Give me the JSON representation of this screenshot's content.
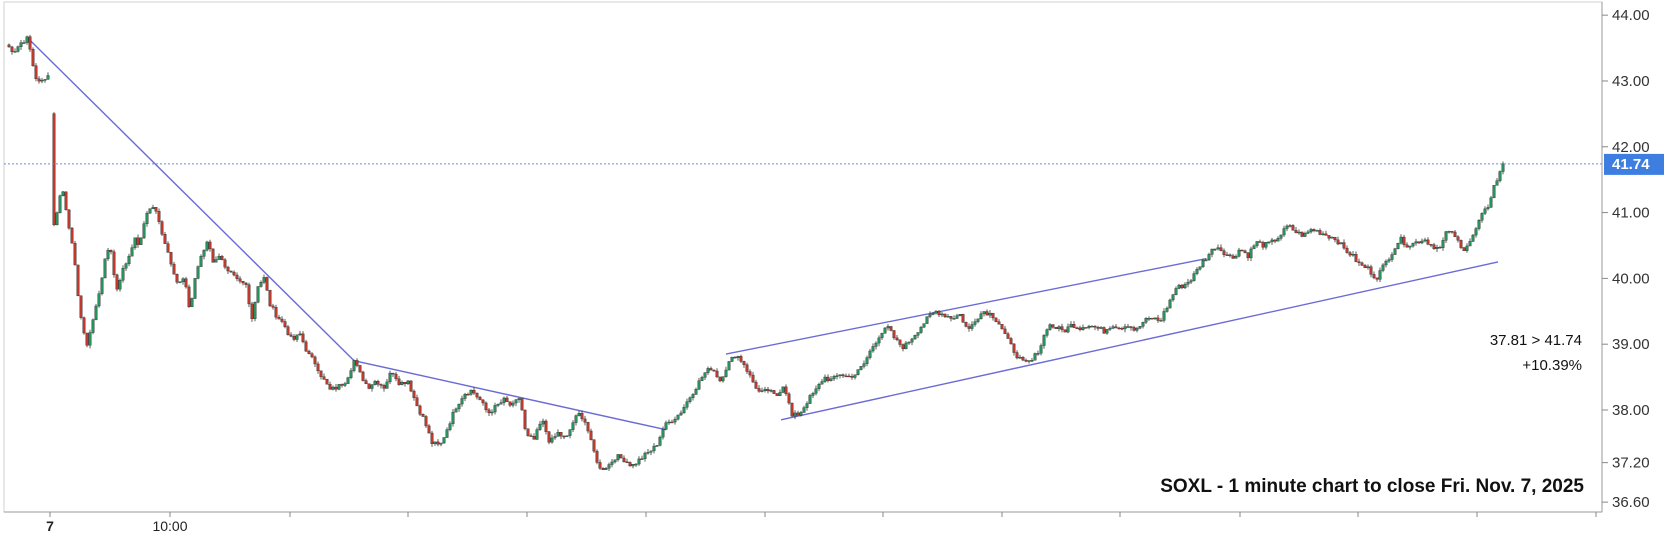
{
  "chart_data": {
    "type": "line",
    "title": "SOXL - 1 minute chart to close Fri. Nov. 7, 2025",
    "x_tick_labels": [
      "7",
      "10:00"
    ],
    "y_tick_labels": [
      "44.00",
      "43.00",
      "42.00",
      "41.00",
      "40.00",
      "39.00",
      "38.00",
      "37.20",
      "36.60"
    ],
    "y_tick_values": [
      44.0,
      43.0,
      42.0,
      41.0,
      40.0,
      39.0,
      38.0,
      37.2,
      36.6
    ],
    "ylim": [
      36.45,
      44.2
    ],
    "last_price": 41.74,
    "last_price_label": "41.74",
    "annotation_line1": "37.81 > 41.74",
    "annotation_line2": "+10.39%",
    "colors": {
      "up": "#26935c",
      "down": "#c0392b",
      "trendline": "#6b6bd6",
      "price_line": "#6a8fd6",
      "price_tag": "#3d7ee0"
    },
    "series": [
      {
        "values": [
          [
            0,
            43.55
          ],
          [
            8,
            43.45
          ],
          [
            16,
            43.6
          ],
          [
            22,
            43.65
          ],
          [
            26,
            43.3
          ],
          [
            30,
            43.05
          ],
          [
            34,
            42.95
          ],
          [
            38,
            43.05
          ],
          [
            44,
            43.1
          ],
          [
            48,
            40.8
          ],
          [
            52,
            41.1
          ],
          [
            56,
            41.4
          ],
          [
            62,
            40.9
          ],
          [
            68,
            40.3
          ],
          [
            74,
            39.5
          ],
          [
            80,
            38.95
          ],
          [
            86,
            39.3
          ],
          [
            92,
            39.7
          ],
          [
            98,
            40.2
          ],
          [
            104,
            40.55
          ],
          [
            110,
            39.8
          ],
          [
            116,
            40.1
          ],
          [
            122,
            40.3
          ],
          [
            128,
            40.6
          ],
          [
            134,
            40.5
          ],
          [
            140,
            41.0
          ],
          [
            148,
            41.1
          ],
          [
            154,
            40.8
          ],
          [
            160,
            40.5
          ],
          [
            166,
            40.2
          ],
          [
            172,
            39.9
          ],
          [
            178,
            40.0
          ],
          [
            184,
            39.5
          ],
          [
            190,
            40.1
          ],
          [
            196,
            40.35
          ],
          [
            202,
            40.6
          ],
          [
            208,
            40.2
          ],
          [
            214,
            40.4
          ],
          [
            220,
            40.1
          ],
          [
            226,
            40.05
          ],
          [
            232,
            39.95
          ],
          [
            240,
            39.9
          ],
          [
            246,
            39.4
          ],
          [
            252,
            39.9
          ],
          [
            258,
            40.0
          ],
          [
            264,
            39.6
          ],
          [
            270,
            39.45
          ],
          [
            278,
            39.3
          ],
          [
            286,
            39.05
          ],
          [
            294,
            39.15
          ],
          [
            302,
            38.85
          ],
          [
            310,
            38.7
          ],
          [
            316,
            38.5
          ],
          [
            324,
            38.3
          ],
          [
            332,
            38.35
          ],
          [
            340,
            38.45
          ],
          [
            348,
            38.75
          ],
          [
            354,
            38.55
          ],
          [
            362,
            38.35
          ],
          [
            370,
            38.45
          ],
          [
            378,
            38.35
          ],
          [
            386,
            38.6
          ],
          [
            394,
            38.4
          ],
          [
            402,
            38.45
          ],
          [
            410,
            38.1
          ],
          [
            418,
            37.85
          ],
          [
            426,
            37.5
          ],
          [
            434,
            37.45
          ],
          [
            442,
            37.75
          ],
          [
            450,
            38.05
          ],
          [
            458,
            38.25
          ],
          [
            466,
            38.3
          ],
          [
            474,
            38.15
          ],
          [
            482,
            37.95
          ],
          [
            490,
            38.05
          ],
          [
            498,
            38.15
          ],
          [
            506,
            38.05
          ],
          [
            514,
            38.2
          ],
          [
            520,
            37.6
          ],
          [
            528,
            37.55
          ],
          [
            536,
            37.85
          ],
          [
            544,
            37.5
          ],
          [
            552,
            37.65
          ],
          [
            560,
            37.55
          ],
          [
            568,
            37.85
          ],
          [
            574,
            37.95
          ],
          [
            580,
            37.8
          ],
          [
            586,
            37.45
          ],
          [
            594,
            37.1
          ],
          [
            602,
            37.15
          ],
          [
            610,
            37.3
          ],
          [
            618,
            37.25
          ],
          [
            626,
            37.15
          ],
          [
            634,
            37.25
          ],
          [
            642,
            37.35
          ],
          [
            650,
            37.45
          ],
          [
            658,
            37.75
          ],
          [
            666,
            37.85
          ],
          [
            674,
            37.95
          ],
          [
            682,
            38.15
          ],
          [
            690,
            38.35
          ],
          [
            698,
            38.55
          ],
          [
            706,
            38.65
          ],
          [
            714,
            38.45
          ],
          [
            722,
            38.7
          ],
          [
            730,
            38.85
          ],
          [
            738,
            38.7
          ],
          [
            746,
            38.45
          ],
          [
            754,
            38.25
          ],
          [
            762,
            38.3
          ],
          [
            770,
            38.2
          ],
          [
            778,
            38.4
          ],
          [
            786,
            37.9
          ],
          [
            794,
            37.95
          ],
          [
            802,
            38.15
          ],
          [
            810,
            38.3
          ],
          [
            818,
            38.5
          ],
          [
            826,
            38.45
          ],
          [
            834,
            38.55
          ],
          [
            842,
            38.5
          ],
          [
            850,
            38.55
          ],
          [
            858,
            38.7
          ],
          [
            866,
            38.95
          ],
          [
            874,
            39.15
          ],
          [
            882,
            39.25
          ],
          [
            890,
            39.05
          ],
          [
            898,
            38.95
          ],
          [
            906,
            39.1
          ],
          [
            914,
            39.25
          ],
          [
            922,
            39.4
          ],
          [
            930,
            39.5
          ],
          [
            938,
            39.45
          ],
          [
            946,
            39.4
          ],
          [
            954,
            39.45
          ],
          [
            962,
            39.2
          ],
          [
            970,
            39.4
          ],
          [
            978,
            39.5
          ],
          [
            986,
            39.45
          ],
          [
            994,
            39.3
          ],
          [
            1002,
            39.05
          ],
          [
            1010,
            38.85
          ],
          [
            1018,
            38.7
          ],
          [
            1026,
            38.75
          ],
          [
            1034,
            38.95
          ],
          [
            1042,
            39.3
          ],
          [
            1050,
            39.25
          ],
          [
            1058,
            39.2
          ],
          [
            1066,
            39.3
          ],
          [
            1074,
            39.25
          ],
          [
            1082,
            39.3
          ],
          [
            1090,
            39.25
          ],
          [
            1098,
            39.2
          ],
          [
            1106,
            39.3
          ],
          [
            1114,
            39.25
          ],
          [
            1122,
            39.3
          ],
          [
            1130,
            39.2
          ],
          [
            1138,
            39.35
          ],
          [
            1146,
            39.4
          ],
          [
            1154,
            39.35
          ],
          [
            1162,
            39.6
          ],
          [
            1170,
            39.85
          ],
          [
            1178,
            39.9
          ],
          [
            1186,
            40.0
          ],
          [
            1194,
            40.2
          ],
          [
            1202,
            40.35
          ],
          [
            1210,
            40.5
          ],
          [
            1218,
            40.4
          ],
          [
            1226,
            40.3
          ],
          [
            1234,
            40.45
          ],
          [
            1242,
            40.35
          ],
          [
            1250,
            40.55
          ],
          [
            1258,
            40.5
          ],
          [
            1266,
            40.55
          ],
          [
            1274,
            40.65
          ],
          [
            1282,
            40.8
          ],
          [
            1290,
            40.7
          ],
          [
            1298,
            40.65
          ],
          [
            1306,
            40.75
          ],
          [
            1314,
            40.7
          ],
          [
            1322,
            40.65
          ],
          [
            1330,
            40.6
          ],
          [
            1338,
            40.45
          ],
          [
            1346,
            40.35
          ],
          [
            1354,
            40.2
          ],
          [
            1362,
            40.15
          ],
          [
            1370,
            40.0
          ],
          [
            1378,
            40.2
          ],
          [
            1386,
            40.4
          ],
          [
            1394,
            40.6
          ],
          [
            1402,
            40.5
          ],
          [
            1410,
            40.55
          ],
          [
            1418,
            40.6
          ],
          [
            1426,
            40.5
          ],
          [
            1434,
            40.45
          ],
          [
            1442,
            40.75
          ],
          [
            1450,
            40.6
          ],
          [
            1458,
            40.45
          ],
          [
            1466,
            40.6
          ],
          [
            1474,
            40.9
          ],
          [
            1482,
            41.1
          ],
          [
            1488,
            41.4
          ],
          [
            1494,
            41.6
          ],
          [
            1497,
            41.74
          ]
        ]
      }
    ],
    "trendlines": [
      [
        [
          22,
          43.65
        ],
        [
          348,
          38.75
        ]
      ],
      [
        [
          348,
          38.75
        ],
        [
          660,
          37.7
        ]
      ],
      [
        [
          720,
          38.85
        ],
        [
          1200,
          40.3
        ]
      ],
      [
        [
          775,
          37.85
        ],
        [
          1492,
          40.25
        ]
      ]
    ]
  }
}
